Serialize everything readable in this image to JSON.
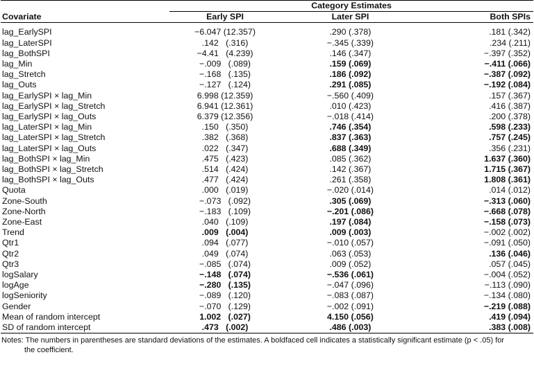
{
  "header": {
    "group_title": "Category Estimates",
    "col_covariate": "Covariate",
    "col_early": "Early SPI",
    "col_later": "Later SPI",
    "col_both": "Both SPIs"
  },
  "rows": [
    {
      "cov": "lag_EarlySPI",
      "early": "−6.047 (12.357)",
      "early_b": false,
      "later": ".290 (.378)",
      "later_b": false,
      "both": ".181 (.342)",
      "both_b": false
    },
    {
      "cov": "lag_LaterSPI",
      "early": ".142   (.316)",
      "early_b": false,
      "later": "−.345 (.339)",
      "later_b": false,
      "both": ".234 (.211)",
      "both_b": false
    },
    {
      "cov": "lag_BothSPI",
      "early": "−4.41   (4.239)",
      "early_b": false,
      "later": ".146 (.347)",
      "later_b": false,
      "both": "−.397 (.352)",
      "both_b": false
    },
    {
      "cov": "lag_Min",
      "early": "−.009   (.089)",
      "early_b": false,
      "later": ".159 (.069)",
      "later_b": true,
      "both": "−.411 (.066)",
      "both_b": true
    },
    {
      "cov": "lag_Stretch",
      "early": "−.168   (.135)",
      "early_b": false,
      "later": ".186 (.092)",
      "later_b": true,
      "both": "−.387 (.092)",
      "both_b": true
    },
    {
      "cov": "lag_Outs",
      "early": "−.127   (.124)",
      "early_b": false,
      "later": ".291 (.085)",
      "later_b": true,
      "both": "−.192 (.084)",
      "both_b": true
    },
    {
      "cov": "lag_EarlySPI × lag_Min",
      "early": "6.998 (12.359)",
      "early_b": false,
      "later": "−.560 (.409)",
      "later_b": false,
      "both": ".157 (.367)",
      "both_b": false
    },
    {
      "cov": "lag_EarlySPI × lag_Stretch",
      "early": "6.941 (12.361)",
      "early_b": false,
      "later": ".010 (.423)",
      "later_b": false,
      "both": ".416 (.387)",
      "both_b": false
    },
    {
      "cov": "lag_EarlySPI × lag_Outs",
      "early": "6.379 (12.356)",
      "early_b": false,
      "later": "−.018 (.414)",
      "later_b": false,
      "both": ".200 (.378)",
      "both_b": false
    },
    {
      "cov": "lag_LaterSPI × lag_Min",
      "early": ".150   (.350)",
      "early_b": false,
      "later": ".746 (.354)",
      "later_b": true,
      "both": ".598 (.233)",
      "both_b": true
    },
    {
      "cov": "lag_LaterSPI × lag_Stretch",
      "early": ".382   (.368)",
      "early_b": false,
      "later": ".837 (.363)",
      "later_b": true,
      "both": ".757 (.245)",
      "both_b": true
    },
    {
      "cov": "lag_LaterSPI × lag_Outs",
      "early": ".022   (.347)",
      "early_b": false,
      "later": ".688 (.349)",
      "later_b": true,
      "both": ".356 (.231)",
      "both_b": false
    },
    {
      "cov": "lag_BothSPI × lag_Min",
      "early": ".475   (.423)",
      "early_b": false,
      "later": ".085 (.362)",
      "later_b": false,
      "both": "1.637 (.360)",
      "both_b": true
    },
    {
      "cov": "lag_BothSPI × lag_Stretch",
      "early": ".514   (.424)",
      "early_b": false,
      "later": ".142 (.367)",
      "later_b": false,
      "both": "1.715 (.367)",
      "both_b": true
    },
    {
      "cov": "lag_BothSPI × lag_Outs",
      "early": ".477   (.424)",
      "early_b": false,
      "later": ".261 (.358)",
      "later_b": false,
      "both": "1.808 (.361)",
      "both_b": true
    },
    {
      "cov": "Quota",
      "early": ".000   (.019)",
      "early_b": false,
      "later": "−.020 (.014)",
      "later_b": false,
      "both": ".014 (.012)",
      "both_b": false
    },
    {
      "cov": "Zone-South",
      "early": "−.073   (.092)",
      "early_b": false,
      "later": ".305 (.069)",
      "later_b": true,
      "both": "−.313 (.060)",
      "both_b": true
    },
    {
      "cov": "Zone-North",
      "early": "−.183   (.109)",
      "early_b": false,
      "later": "−.201 (.086)",
      "later_b": true,
      "both": "−.668 (.078)",
      "both_b": true
    },
    {
      "cov": "Zone-East",
      "early": ".040   (.109)",
      "early_b": false,
      "later": ".197 (.084)",
      "later_b": true,
      "both": "−.158 (.073)",
      "both_b": true
    },
    {
      "cov": "Trend",
      "early": ".009   (.004)",
      "early_b": true,
      "later": ".009 (.003)",
      "later_b": true,
      "both": "−.002 (.002)",
      "both_b": false
    },
    {
      "cov": "Qtr1",
      "early": ".094   (.077)",
      "early_b": false,
      "later": "−.010 (.057)",
      "later_b": false,
      "both": "−.091 (.050)",
      "both_b": false
    },
    {
      "cov": "Qtr2",
      "early": ".049   (.074)",
      "early_b": false,
      "later": ".063 (.053)",
      "later_b": false,
      "both": ".136 (.046)",
      "both_b": true
    },
    {
      "cov": "Qtr3",
      "early": "−.085   (.074)",
      "early_b": false,
      "later": ".009 (.052)",
      "later_b": false,
      "both": ".057 (.045)",
      "both_b": false
    },
    {
      "cov": "logSalary",
      "early": "−.148   (.074)",
      "early_b": true,
      "later": "−.536 (.061)",
      "later_b": true,
      "both": "−.004 (.052)",
      "both_b": false
    },
    {
      "cov": "logAge",
      "early": "−.280   (.135)",
      "early_b": true,
      "later": "−.047 (.096)",
      "later_b": false,
      "both": "−.113 (.090)",
      "both_b": false
    },
    {
      "cov": "logSeniority",
      "early": "−.089   (.120)",
      "early_b": false,
      "later": "−.083 (.087)",
      "later_b": false,
      "both": "−.134 (.080)",
      "both_b": false
    },
    {
      "cov": "Gender",
      "early": "−.070   (.129)",
      "early_b": false,
      "later": "−.002 (.091)",
      "later_b": false,
      "both": "−.219 (.088)",
      "both_b": true
    },
    {
      "cov": "Mean of random intercept",
      "early": "1.002   (.027)",
      "early_b": true,
      "later": "4.150 (.056)",
      "later_b": true,
      "both": ".419 (.094)",
      "both_b": true
    },
    {
      "cov": "SD of random intercept",
      "early": ".473   (.002)",
      "early_b": true,
      "later": ".486 (.003)",
      "later_b": true,
      "both": ".383 (.008)",
      "both_b": true
    }
  ],
  "notes": {
    "line1": "Notes: The numbers in parentheses are standard deviations of the estimates. A boldfaced cell indicates a statistically significant estimate (p < .05) for",
    "line2": "the coefficient."
  }
}
